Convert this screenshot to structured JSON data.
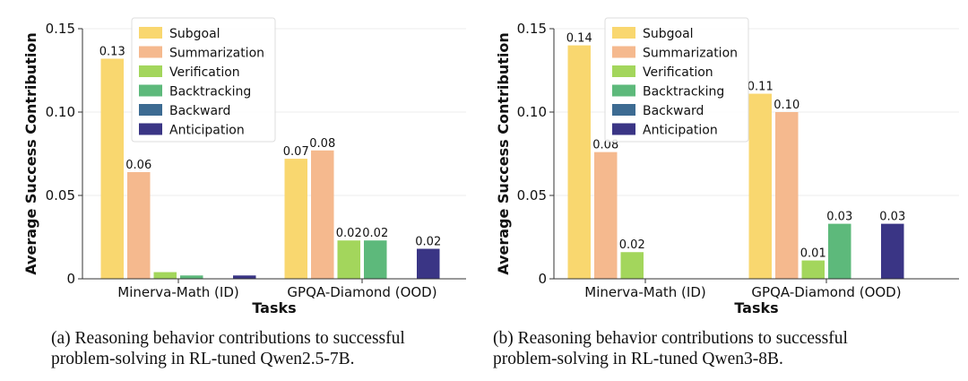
{
  "legend": [
    {
      "name": "Subgoal",
      "color": "#F9D76F"
    },
    {
      "name": "Summarization",
      "color": "#F5B98E"
    },
    {
      "name": "Verification",
      "color": "#A3D65C"
    },
    {
      "name": "Backtracking",
      "color": "#5DB97B"
    },
    {
      "name": "Backward",
      "color": "#3D6B92"
    },
    {
      "name": "Anticipation",
      "color": "#3A3585"
    }
  ],
  "chart_data": [
    {
      "type": "bar",
      "categories": [
        "Minerva-Math (ID)",
        "GPQA-Diamond (OOD)"
      ],
      "xlabel": "Tasks",
      "ylabel": "Average Success Contribution",
      "ylim": [
        0,
        0.15
      ],
      "yticks": [
        "0",
        "0.05",
        "0.10",
        "0.15"
      ],
      "grid": true,
      "legend_position": "top-left",
      "series": [
        {
          "name": "Subgoal",
          "values": [
            0.132,
            0.072
          ],
          "labels": [
            "0.13",
            "0.07"
          ]
        },
        {
          "name": "Summarization",
          "values": [
            0.064,
            0.077
          ],
          "labels": [
            "0.06",
            "0.08"
          ]
        },
        {
          "name": "Verification",
          "values": [
            0.004,
            0.023
          ],
          "labels": [
            "",
            "0.02"
          ]
        },
        {
          "name": "Backtracking",
          "values": [
            0.002,
            0.023
          ],
          "labels": [
            "",
            "0.02"
          ]
        },
        {
          "name": "Backward",
          "values": [
            0.0,
            0.0
          ],
          "labels": [
            "",
            ""
          ]
        },
        {
          "name": "Anticipation",
          "values": [
            0.002,
            0.018
          ],
          "labels": [
            "",
            "0.02"
          ]
        }
      ]
    },
    {
      "type": "bar",
      "categories": [
        "Minerva-Math (ID)",
        "GPQA-Diamond (OOD)"
      ],
      "xlabel": "Tasks",
      "ylabel": "Average Success Contribution",
      "ylim": [
        0,
        0.15
      ],
      "yticks": [
        "0",
        "0.05",
        "0.10",
        "0.15"
      ],
      "grid": true,
      "legend_position": "top-left",
      "series": [
        {
          "name": "Subgoal",
          "values": [
            0.14,
            0.111
          ],
          "labels": [
            "0.14",
            "0.11"
          ]
        },
        {
          "name": "Summarization",
          "values": [
            0.076,
            0.1
          ],
          "labels": [
            "0.08",
            "0.10"
          ]
        },
        {
          "name": "Verification",
          "values": [
            0.016,
            0.011
          ],
          "labels": [
            "0.02",
            "0.01"
          ]
        },
        {
          "name": "Backtracking",
          "values": [
            0.0,
            0.033
          ],
          "labels": [
            "",
            "0.03"
          ]
        },
        {
          "name": "Backward",
          "values": [
            0.0,
            0.0
          ],
          "labels": [
            "",
            ""
          ]
        },
        {
          "name": "Anticipation",
          "values": [
            0.0,
            0.033
          ],
          "labels": [
            "",
            "0.03"
          ]
        }
      ]
    }
  ],
  "captions": [
    {
      "line1": "(a) Reasoning behavior contributions to successful",
      "line2": "problem-solving in RL-tuned Qwen2.5-7B."
    },
    {
      "line1": "(b) Reasoning behavior contributions to successful",
      "line2": "problem-solving in RL-tuned Qwen3-8B."
    }
  ]
}
